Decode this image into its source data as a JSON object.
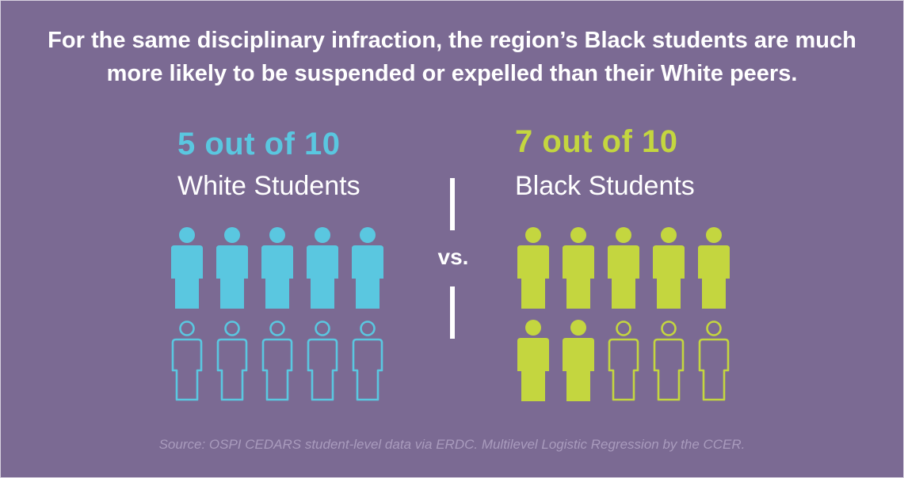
{
  "headline": {
    "line1": "For the same disciplinary infraction, the region’s Black students are much",
    "line2": "more likely to be suspended or expelled than their White peers."
  },
  "white": {
    "stat": "5 out of 10",
    "label": "White Students",
    "color": "#5ac7e0",
    "affected": 5,
    "total": 10
  },
  "black": {
    "stat": "7 out of 10",
    "label": "Black Students",
    "color": "#c4d63f",
    "affected": 7,
    "total": 10
  },
  "vs_label": "vs.",
  "icon": "person-icon",
  "source": "Source: OSPI CEDARS student-level data via ERDC. Multilevel Logistic Regression by the CCER."
}
